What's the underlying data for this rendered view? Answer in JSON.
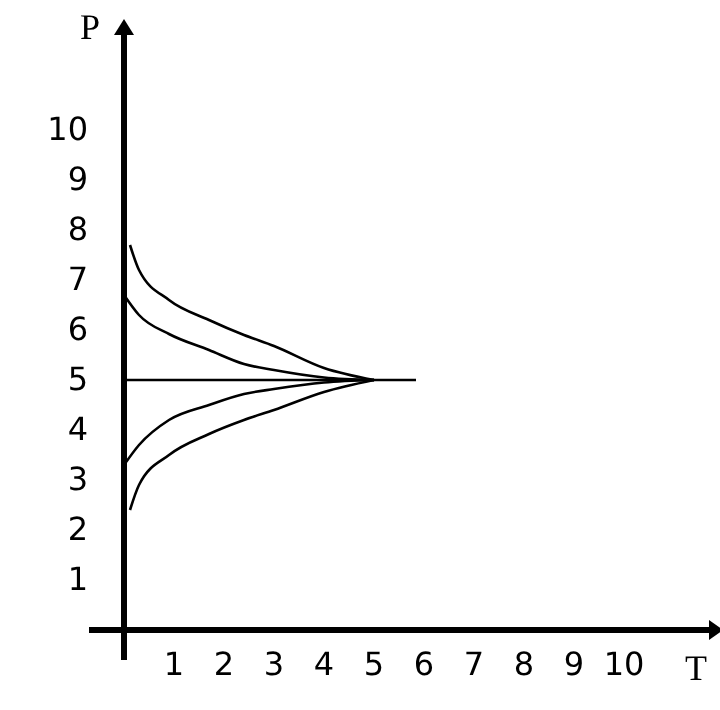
{
  "chart_data": {
    "type": "line",
    "xlabel": "T",
    "ylabel": "P",
    "xlim": [
      -0.7,
      11.7
    ],
    "ylim": [
      -0.6,
      11.9
    ],
    "xticks": [
      1,
      2,
      3,
      4,
      5,
      6,
      7,
      8,
      9,
      10
    ],
    "yticks": [
      1,
      2,
      3,
      4,
      5,
      6,
      7,
      8,
      9,
      10
    ],
    "grid": false,
    "marker": "none",
    "line_style": "solid",
    "series": [
      {
        "color": "#000000",
        "x": [
          0.12,
          0.3,
          0.9,
          1.7,
          2.4,
          3,
          4,
          5
        ],
        "values": [
          7.7,
          7.2,
          6.6,
          6.2,
          5.9,
          5.68,
          5.24,
          5
        ]
      },
      {
        "color": "#000000",
        "x": [
          0,
          0.3,
          0.9,
          1.7,
          2.4,
          3,
          4,
          5
        ],
        "values": [
          6.7,
          6.3,
          5.92,
          5.6,
          5.32,
          5.2,
          5.05,
          5
        ]
      },
      {
        "color": "#000000",
        "x": [
          0,
          0.3,
          0.9,
          1.7,
          2.4,
          3,
          4,
          5
        ],
        "values": [
          3.3,
          3.7,
          4.2,
          4.5,
          4.72,
          4.82,
          4.95,
          5
        ]
      },
      {
        "color": "#000000",
        "x": [
          0.12,
          0.3,
          0.9,
          1.7,
          2.4,
          3,
          4,
          5
        ],
        "values": [
          2.4,
          2.9,
          3.5,
          3.92,
          4.2,
          4.4,
          4.76,
          5
        ]
      },
      {
        "color": "#000000",
        "x": [
          0,
          5.84
        ],
        "values": [
          5,
          5
        ]
      }
    ]
  }
}
